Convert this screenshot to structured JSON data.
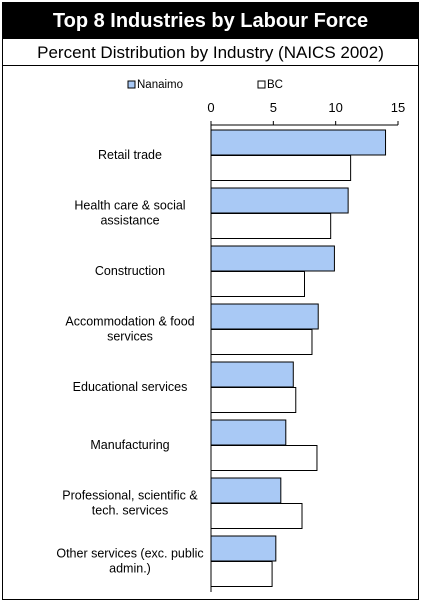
{
  "header": {
    "title": "Top 8 Industries by Labour Force",
    "subtitle": "Percent Distribution by Industry (NAICS 2002)"
  },
  "colors": {
    "nanaimo": "#a9c9f5",
    "bc": "#ffffff",
    "stroke": "#000000"
  },
  "chart_data": {
    "type": "bar",
    "orientation": "horizontal",
    "title": "Top 8 Industries by Labour Force",
    "subtitle": "Percent Distribution by Industry (NAICS 2002)",
    "xlim": [
      0,
      15
    ],
    "xticks": [
      0,
      5,
      10,
      15
    ],
    "legend_position": "top",
    "grid": false,
    "categories": [
      [
        "Retail trade"
      ],
      [
        "Health care & social",
        "assistance"
      ],
      [
        "Construction"
      ],
      [
        "Accommodation & food",
        "services"
      ],
      [
        "Educational services"
      ],
      [
        "Manufacturing"
      ],
      [
        "Professional, scientific &",
        "tech. services"
      ],
      [
        "Other services (exc. public",
        "admin.)"
      ]
    ],
    "series": [
      {
        "name": "Nanaimo",
        "values": [
          14.0,
          11.0,
          9.9,
          8.6,
          6.6,
          6.0,
          5.6,
          5.2
        ]
      },
      {
        "name": "BC",
        "values": [
          11.2,
          9.6,
          7.5,
          8.1,
          6.8,
          8.5,
          7.3,
          4.9
        ]
      }
    ]
  }
}
